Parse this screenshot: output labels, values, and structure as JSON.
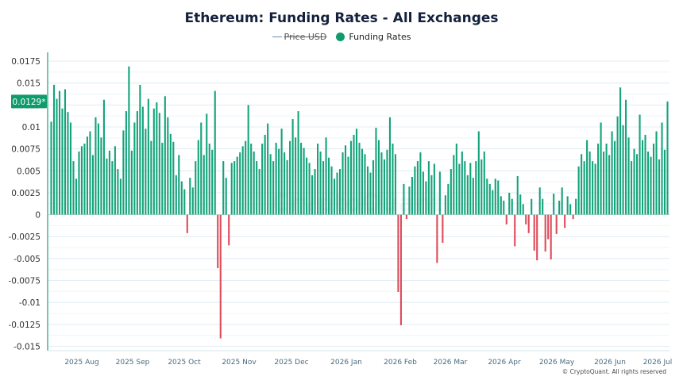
{
  "chart_data": {
    "type": "bar",
    "title": "Ethereum: Funding Rates - All Exchanges",
    "legend": [
      {
        "name": "Price USD",
        "color": "#6b8fa8",
        "hidden": true
      },
      {
        "name": "Funding Rates",
        "color": "#0f9b6c",
        "hidden": false
      }
    ],
    "current_value_label": "0.0129*",
    "y_ticks": [
      "0.0175",
      "0.015",
      "0.0125",
      "0.01",
      "0.0075",
      "0.005",
      "0.0025",
      "0",
      "-0.0025",
      "-0.005",
      "-0.0075",
      "-0.01",
      "-0.0125",
      "-0.015"
    ],
    "ylim": [
      -0.0155,
      0.0185
    ],
    "x_ticks": [
      "2025 Aug",
      "2025 Sep",
      "2025 Oct",
      "2025 Nov",
      "2025 Dec",
      "2026 Jan",
      "2026 Feb",
      "2026 Mar",
      "2026 Apr",
      "2026 May",
      "2026 Jun",
      "2026 Jul"
    ],
    "grid": true,
    "positive_color": "#14a37a",
    "negative_color": "#dd4b5a",
    "values": [
      0.0106,
      0.0148,
      0.0132,
      0.0141,
      0.0121,
      0.0143,
      0.0117,
      0.0105,
      0.0061,
      0.0041,
      0.0072,
      0.0078,
      0.0081,
      0.0089,
      0.0095,
      0.0068,
      0.0111,
      0.0104,
      0.0088,
      0.0131,
      0.0064,
      0.0073,
      0.0061,
      0.0078,
      0.0052,
      0.0041,
      0.0096,
      0.0118,
      0.0169,
      0.0073,
      0.0105,
      0.0118,
      0.0148,
      0.0123,
      0.0098,
      0.0132,
      0.0084,
      0.0121,
      0.0128,
      0.0116,
      0.0082,
      0.0135,
      0.0111,
      0.0092,
      0.0083,
      0.0045,
      0.0068,
      0.0038,
      0.0029,
      -0.0021,
      0.0042,
      0.0031,
      0.0061,
      0.0085,
      0.0105,
      0.0068,
      0.0115,
      0.0081,
      0.0074,
      0.0141,
      -0.0061,
      -0.0141,
      0.0061,
      0.0042,
      -0.0035,
      0.0059,
      0.0061,
      0.0066,
      0.0071,
      0.0078,
      0.0084,
      0.0125,
      0.0081,
      0.0072,
      0.0061,
      0.0052,
      0.0081,
      0.0091,
      0.0104,
      0.0069,
      0.0061,
      0.0082,
      0.0075,
      0.0098,
      0.0071,
      0.0062,
      0.0084,
      0.0109,
      0.0088,
      0.0118,
      0.0082,
      0.0076,
      0.0065,
      0.0059,
      0.0045,
      0.0052,
      0.0081,
      0.0072,
      0.0061,
      0.0088,
      0.0065,
      0.0055,
      0.0041,
      0.0048,
      0.0052,
      0.0071,
      0.0079,
      0.0066,
      0.0084,
      0.0091,
      0.0098,
      0.0082,
      0.0075,
      0.0069,
      0.0055,
      0.0048,
      0.0062,
      0.0099,
      0.0085,
      0.0071,
      0.0063,
      0.0074,
      0.0111,
      0.0081,
      0.0069,
      -0.0088,
      -0.0126,
      0.0035,
      -0.0005,
      0.0032,
      0.0043,
      0.0055,
      0.0061,
      0.0071,
      0.0049,
      0.0038,
      0.0061,
      0.0045,
      0.0058,
      -0.0055,
      0.0049,
      -0.0032,
      0.0022,
      0.0035,
      0.0052,
      0.0068,
      0.0081,
      0.0058,
      0.0072,
      0.0061,
      0.0045,
      0.0059,
      0.0042,
      0.0061,
      0.0095,
      0.0063,
      0.0072,
      0.0041,
      0.0035,
      0.0028,
      0.0041,
      0.0039,
      0.0021,
      0.0016,
      -0.0011,
      0.0025,
      0.0018,
      -0.0036,
      0.0044,
      0.0023,
      0.0012,
      -0.0011,
      -0.0021,
      0.0018,
      -0.0041,
      -0.0052,
      0.0031,
      0.0018,
      -0.0042,
      -0.0028,
      -0.0051,
      0.0024,
      -0.0022,
      0.0016,
      0.0031,
      -0.0015,
      0.0021,
      0.0012,
      -0.0005,
      0.0018,
      0.0055,
      0.0069,
      0.0061,
      0.0085,
      0.0072,
      0.0061,
      0.0058,
      0.0081,
      0.0105,
      0.0072,
      0.0081,
      0.0068,
      0.0095,
      0.0084,
      0.0112,
      0.0145,
      0.0102,
      0.0131,
      0.0088,
      0.0061,
      0.0075,
      0.0069,
      0.0114,
      0.0085,
      0.0091,
      0.0072,
      0.0066,
      0.0081,
      0.0095,
      0.0063,
      0.0105,
      0.0074,
      0.0129
    ]
  },
  "watermark": "CryptoQuant",
  "copyright": "© CryptoQuant. All rights reserved"
}
